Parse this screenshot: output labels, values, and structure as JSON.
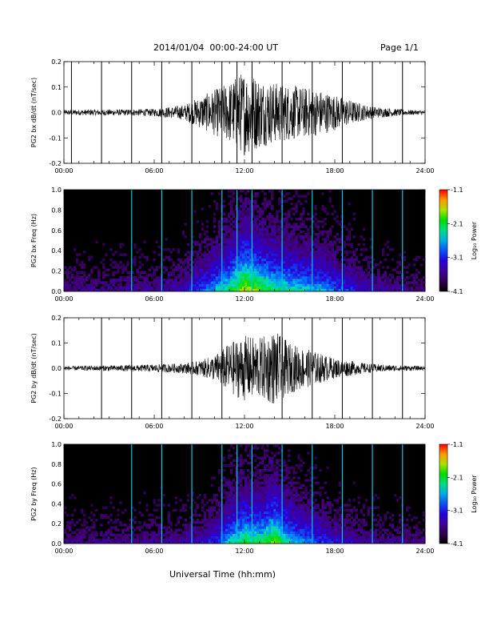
{
  "header": {
    "title": "2014/01/04  00:00-24:00 UT",
    "page": "Page 1/1"
  },
  "footer": {
    "xlabel": "Universal Time (hh:mm)"
  },
  "chart_data": [
    {
      "type": "line",
      "ylabel": "PG2 bx dB/dt (nT/sec)",
      "xlim": [
        0,
        24
      ],
      "ylim": [
        -0.2,
        0.2
      ],
      "x_ticks": [
        "00:00",
        "06:00",
        "12:00",
        "18:00",
        "24:00"
      ],
      "y_ticks": [
        "0.2",
        "0.1",
        "0.0",
        "-0.1",
        "-0.2"
      ],
      "spike_hours": [
        0.5,
        2.5,
        4.5,
        6.5,
        8.5,
        10.5,
        11.5,
        12.5,
        14.5,
        16.5,
        18.5,
        20.5,
        22.5
      ],
      "envelope": {
        "x": [
          0,
          2,
          4,
          6,
          8,
          9,
          10,
          11,
          12,
          13,
          14,
          15,
          16,
          17,
          18,
          19,
          20,
          21,
          22,
          23,
          24
        ],
        "amplitude": [
          0.01,
          0.012,
          0.012,
          0.015,
          0.03,
          0.06,
          0.09,
          0.12,
          0.17,
          0.14,
          0.12,
          0.11,
          0.1,
          0.09,
          0.07,
          0.05,
          0.03,
          0.02,
          0.015,
          0.01,
          0.008
        ]
      }
    },
    {
      "type": "heatmap",
      "ylabel": "PG2 bx Freq (Hz)",
      "xlim": [
        0,
        24
      ],
      "ylim": [
        0,
        1.0
      ],
      "x_ticks": [
        "00:00",
        "06:00",
        "12:00",
        "18:00",
        "24:00"
      ],
      "y_ticks": [
        "1.0",
        "0.8",
        "0.6",
        "0.4",
        "0.2",
        "0.0"
      ],
      "colorbar": {
        "label": "Log₁₀ Power",
        "ticks": [
          "-1.1",
          "-2.1",
          "-3.1",
          "-4.1"
        ],
        "range": [
          -4.1,
          -1.1
        ]
      },
      "line_hours": [
        4.5,
        6.5,
        8.5,
        10.5,
        11.5,
        12.5,
        14.5,
        16.5,
        18.5,
        20.5,
        22.5
      ]
    },
    {
      "type": "line",
      "ylabel": "PG2 by dB/dt (nT/sec)",
      "xlim": [
        0,
        24
      ],
      "ylim": [
        -0.2,
        0.2
      ],
      "x_ticks": [
        "00:00",
        "06:00",
        "12:00",
        "18:00",
        "24:00"
      ],
      "y_ticks": [
        "0.2",
        "0.1",
        "0.0",
        "-0.1",
        "-0.2"
      ],
      "spike_hours": [
        2.5,
        4.5,
        6.5,
        8.5,
        10.5,
        14.5,
        16.5,
        18.5,
        20.5,
        22.5
      ],
      "envelope": {
        "x": [
          0,
          2,
          4,
          6,
          8,
          9,
          10,
          11,
          12,
          13,
          14,
          15,
          16,
          17,
          18,
          19,
          20,
          21,
          22,
          23,
          24
        ],
        "amplitude": [
          0.008,
          0.01,
          0.012,
          0.015,
          0.02,
          0.03,
          0.05,
          0.1,
          0.13,
          0.12,
          0.15,
          0.1,
          0.08,
          0.06,
          0.04,
          0.03,
          0.02,
          0.015,
          0.012,
          0.01,
          0.008
        ]
      }
    },
    {
      "type": "heatmap",
      "ylabel": "PG2 by Freq (Hz)",
      "xlim": [
        0,
        24
      ],
      "ylim": [
        0,
        1.0
      ],
      "x_ticks": [
        "00:00",
        "06:00",
        "12:00",
        "18:00",
        "24:00"
      ],
      "y_ticks": [
        "1.0",
        "0.8",
        "0.6",
        "0.4",
        "0.2",
        "0.0"
      ],
      "colorbar": {
        "label": "Log₁₀ Power",
        "ticks": [
          "-1.1",
          "-2.1",
          "-3.1",
          "-4.1"
        ],
        "range": [
          -4.1,
          -1.1
        ]
      },
      "line_hours": [
        4.5,
        6.5,
        8.5,
        10.5,
        11.5,
        12.5,
        14.5,
        16.5,
        18.5,
        20.5,
        22.5
      ]
    }
  ]
}
